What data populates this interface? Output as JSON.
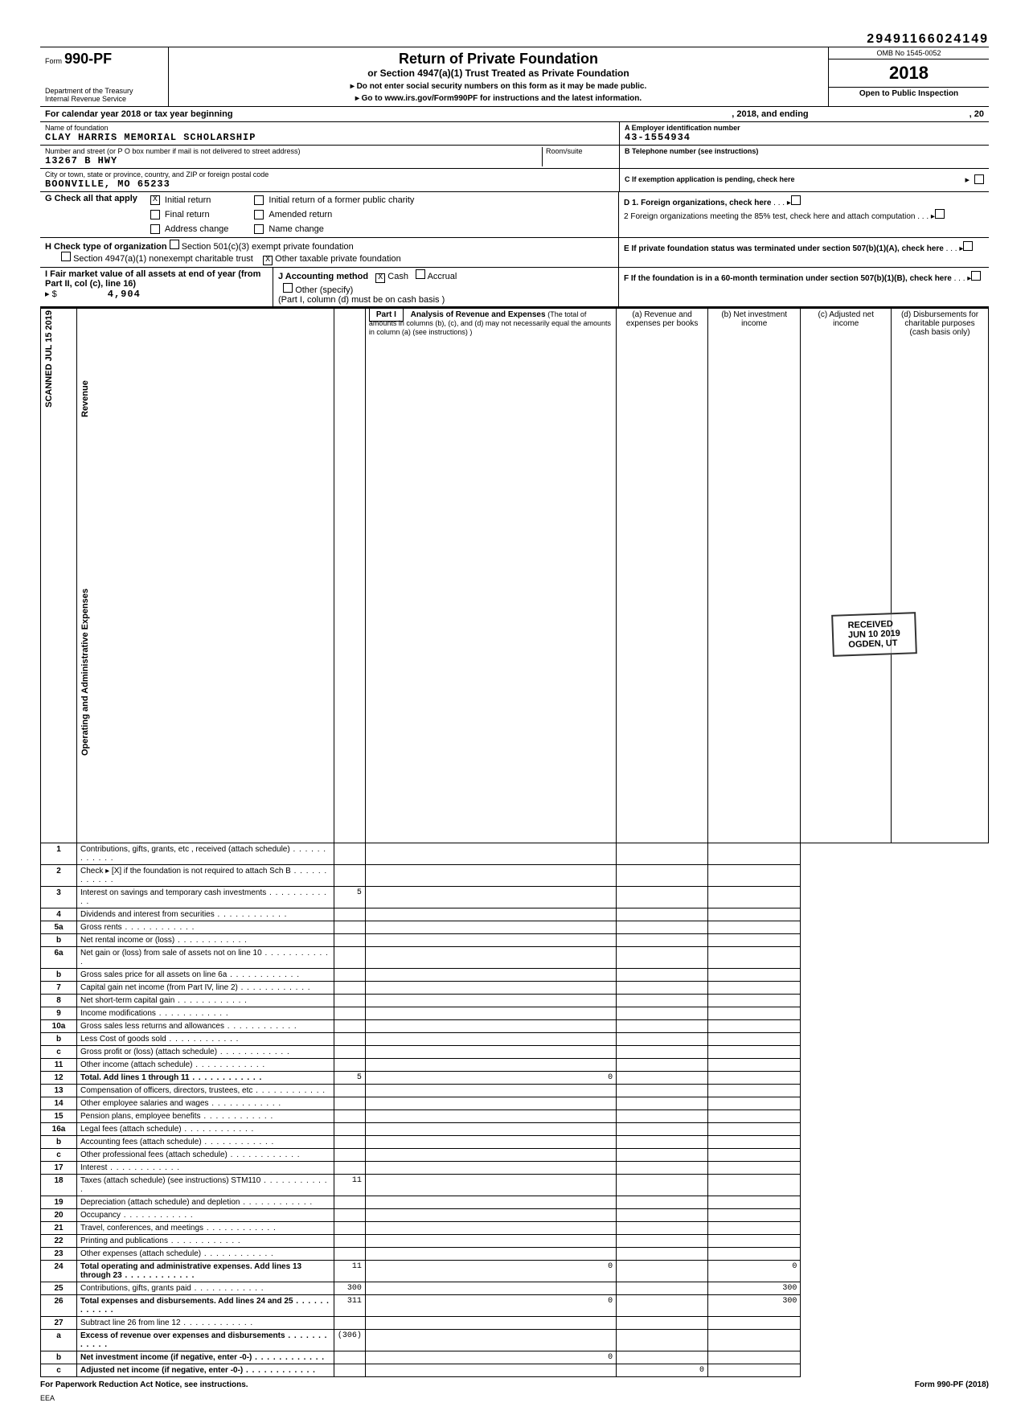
{
  "top_stamp_number": "29491166024149",
  "form": {
    "number": "990-PF",
    "dept": "Department of the Treasury",
    "irs": "Internal Revenue Service",
    "title": "Return of Private Foundation",
    "subtitle": "or Section 4947(a)(1) Trust Treated as Private Foundation",
    "instr1": "▸ Do not enter social security numbers on this form as it may be made public.",
    "instr2": "▸ Go to www.irs.gov/Form990PF for instructions and the latest information.",
    "omb": "OMB No 1545-0052",
    "year": "2018",
    "inspection": "Open to Public Inspection"
  },
  "calendar_line": {
    "prefix": "For calendar year 2018 or tax year beginning",
    "mid": ", 2018, and ending",
    "suffix": ", 20"
  },
  "name_block": {
    "label": "Name of foundation",
    "value": "CLAY HARRIS MEMORIAL SCHOLARSHIP",
    "street_label": "Number and street (or P O box number if mail is not delivered to street address)",
    "street_value": "13267 B HWY",
    "room_label": "Room/suite",
    "city_label": "City or town, state or province, country, and ZIP or foreign postal code",
    "city_value": "BOONVILLE, MO 65233"
  },
  "ein_block": {
    "label": "A Employer identification number",
    "value": "43-1554934",
    "tel_label": "B Telephone number (see instructions)",
    "c_label": "C  If exemption application is pending, check here"
  },
  "g_block": {
    "label": "G  Check all that apply",
    "opts": [
      "Initial return",
      "Final return",
      "Address change",
      "Initial return of a former public charity",
      "Amended return",
      "Name change"
    ],
    "checked_initial": "X"
  },
  "h_block": {
    "label": "H  Check type of organization",
    "opt1": "Section 501(c)(3) exempt private foundation",
    "opt2": "Section 4947(a)(1) nonexempt charitable trust",
    "opt3": "Other taxable private foundation",
    "checked_other": "X"
  },
  "i_block": {
    "label": "I   Fair market value of all assets at end of year (from Part II, col (c), line 16)",
    "arrow": "▸ $",
    "value": "4,904"
  },
  "j_block": {
    "label": "J   Accounting method",
    "cash": "Cash",
    "accrual": "Accrual",
    "other": "Other (specify)",
    "checked_cash": "X",
    "note": "(Part I, column (d) must be on cash basis )"
  },
  "d_block": {
    "d1": "D  1. Foreign organizations, check here",
    "d2": "2  Foreign organizations meeting the 85% test, check here and attach computation",
    "e": "E   If private foundation status was terminated under section 507(b)(1)(A), check here",
    "f": "F   If the foundation is in a 60-month termination under section 507(b)(1)(B), check here"
  },
  "part1": {
    "label": "Part I",
    "title": "Analysis of Revenue and Expenses",
    "note": "(The total of amounts in columns (b), (c), and (d) may not necessarily equal the amounts in column (a) (see instructions) )",
    "col_a": "(a) Revenue and expenses per books",
    "col_b": "(b) Net investment income",
    "col_c": "(c) Adjusted net income",
    "col_d": "(d) Disbursements for charitable purposes (cash basis only)"
  },
  "side_labels": {
    "scanned": "SCANNED JUL 15 2019",
    "revenue": "Revenue",
    "opex": "Operating and Administrative Expenses"
  },
  "rows": [
    {
      "n": "1",
      "d": "Contributions, gifts, grants, etc , received (attach schedule)"
    },
    {
      "n": "2",
      "d": "Check ▸  [X]  if the foundation is not required to attach Sch B"
    },
    {
      "n": "3",
      "d": "Interest on savings and temporary cash investments",
      "a": "5"
    },
    {
      "n": "4",
      "d": "Dividends and interest from securities"
    },
    {
      "n": "5a",
      "d": "Gross rents"
    },
    {
      "n": "b",
      "d": "Net rental income or (loss)"
    },
    {
      "n": "6a",
      "d": "Net gain or (loss) from sale of assets not on line 10"
    },
    {
      "n": "b",
      "d": "Gross sales price for all assets on line 6a"
    },
    {
      "n": "7",
      "d": "Capital gain net income (from Part IV, line 2)"
    },
    {
      "n": "8",
      "d": "Net short-term capital gain"
    },
    {
      "n": "9",
      "d": "Income modifications"
    },
    {
      "n": "10a",
      "d": "Gross sales less returns and allowances"
    },
    {
      "n": "b",
      "d": "Less  Cost of goods sold"
    },
    {
      "n": "c",
      "d": "Gross profit or (loss) (attach schedule)"
    },
    {
      "n": "11",
      "d": "Other income (attach schedule)"
    },
    {
      "n": "12",
      "d": "Total. Add lines 1 through 11",
      "a": "5",
      "b": "0",
      "bold": true
    },
    {
      "n": "13",
      "d": "Compensation of officers, directors, trustees, etc"
    },
    {
      "n": "14",
      "d": "Other employee salaries and wages"
    },
    {
      "n": "15",
      "d": "Pension plans, employee benefits"
    },
    {
      "n": "16a",
      "d": "Legal fees (attach schedule)"
    },
    {
      "n": "b",
      "d": "Accounting fees (attach schedule)"
    },
    {
      "n": "c",
      "d": "Other professional fees (attach schedule)"
    },
    {
      "n": "17",
      "d": "Interest"
    },
    {
      "n": "18",
      "d": "Taxes (attach schedule) (see instructions)     STM110",
      "a": "11"
    },
    {
      "n": "19",
      "d": "Depreciation (attach schedule) and depletion"
    },
    {
      "n": "20",
      "d": "Occupancy"
    },
    {
      "n": "21",
      "d": "Travel, conferences, and meetings"
    },
    {
      "n": "22",
      "d": "Printing and publications"
    },
    {
      "n": "23",
      "d": "Other expenses (attach schedule)"
    },
    {
      "n": "24",
      "d": "Total operating and administrative expenses. Add lines 13 through 23",
      "a": "11",
      "b": "0",
      "dd": "0",
      "bold": true
    },
    {
      "n": "25",
      "d": "Contributions, gifts, grants paid",
      "a": "300",
      "dd": "300"
    },
    {
      "n": "26",
      "d": "Total expenses and disbursements. Add lines 24 and 25",
      "a": "311",
      "b": "0",
      "dd": "300",
      "bold": true
    },
    {
      "n": "27",
      "d": "Subtract line 26 from line 12"
    },
    {
      "n": "a",
      "d": "Excess of revenue over expenses and disbursements",
      "a": "(306)",
      "bold": true
    },
    {
      "n": "b",
      "d": "Net investment income (if negative, enter -0-)",
      "b": "0",
      "bold": true
    },
    {
      "n": "c",
      "d": "Adjusted net income (if negative, enter -0-)",
      "c": "0",
      "bold": true
    }
  ],
  "received_stamp": {
    "l1": "RECEIVED",
    "l2": "JUN 10 2019",
    "l3": "OGDEN, UT"
  },
  "footer": {
    "left": "For Paperwork Reduction Act Notice, see instructions.",
    "mid": "EEA",
    "right": "Form 990-PF (2018)"
  }
}
